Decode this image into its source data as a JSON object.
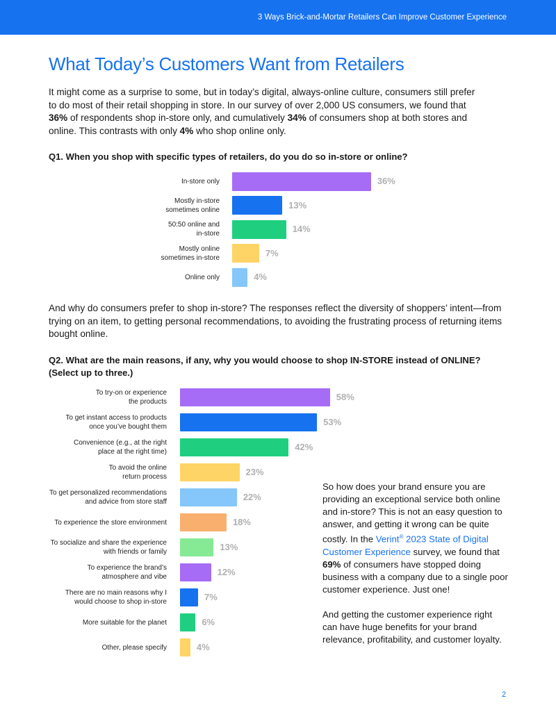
{
  "header": {
    "running_title": "3 Ways Brick-and-Mortar Retailers Can Improve Customer Experience"
  },
  "title": "What Today’s Customers Want from Retailers",
  "intro": [
    "It might come as a surprise to some, but in today’s digital, always-online culture, consumers still prefer to do most of their retail shopping in store. In our survey of over 2,000 US consumers, we found that ",
    "36%",
    " of respondents shop in-store only, and cumulatively ",
    "34%",
    " of consumers shop at both stores and online. This contrasts with only ",
    "4%",
    " who shop online only."
  ],
  "paragraph2": "And why do consumers prefer to shop in-store? The responses reflect the diversity of shoppers’ intent—from trying on an item, to getting personal recommendations, to avoiding the frustrating process of returning items bought online.",
  "sidebar": {
    "paragraph1": [
      "So how does your brand ensure you are providing an exceptional service both online and in-store? This is not an easy question to answer, and getting it wrong can be quite costly. In the ",
      "Verint",
      "®",
      " 2023 State of Digital Customer Experience",
      " survey, we found that ",
      "69%",
      " of consumers have stopped doing business with a company due to a single poor customer experience. Just one!"
    ],
    "paragraph2": "And getting the customer experience right can have huge benefits for your brand relevance, profitability, and customer loyalty."
  },
  "page_number": "2",
  "chart_data": [
    {
      "type": "bar",
      "orientation": "horizontal",
      "title": "Q1. When you shop with specific types of retailers, do you do so in-store or online?",
      "categories": [
        "In-store only",
        "Mostly in-store\nsometimes online",
        "50:50 online and\nin-store",
        "Mostly online\nsometimes in-store",
        "Online only"
      ],
      "values": [
        36,
        13,
        14,
        7,
        4
      ],
      "value_labels": [
        "36%",
        "13%",
        "14%",
        "7%",
        "4%"
      ],
      "colors": [
        "#a66cf6",
        "#1672ef",
        "#1fcf7f",
        "#fdd465",
        "#85c6fb"
      ]
    },
    {
      "type": "bar",
      "orientation": "horizontal",
      "title": "Q2. What are the main reasons, if any, why you would choose to shop IN-STORE instead of ONLINE?\n(Select up to three.)",
      "categories": [
        "To try-on or experience\nthe products",
        "To get instant access to products\nonce you’ve bought them",
        "Convenience (e.g., at the right\nplace at the right time)",
        "To avoid the online\nreturn process",
        "To get personalized recommendations\nand advice from store staff",
        "To experience the store environment",
        "To socialize and share the experience\nwith friends or family",
        "To experience the brand’s\natmosphere and vibe",
        "There are no main reasons why I\nwould choose to shop in-store",
        "More suitable for the planet",
        "Other, please specify"
      ],
      "values": [
        58,
        53,
        42,
        23,
        22,
        18,
        13,
        12,
        7,
        6,
        4
      ],
      "value_labels": [
        "58%",
        "53%",
        "42%",
        "23%",
        "22%",
        "18%",
        "13%",
        "12%",
        "7%",
        "6%",
        "4%"
      ],
      "colors": [
        "#a66cf6",
        "#1672ef",
        "#1fcf7f",
        "#fdd465",
        "#85c6fb",
        "#f9b06e",
        "#86ea94",
        "#a66cf6",
        "#1672ef",
        "#1fcf7f",
        "#fdd465"
      ]
    }
  ]
}
